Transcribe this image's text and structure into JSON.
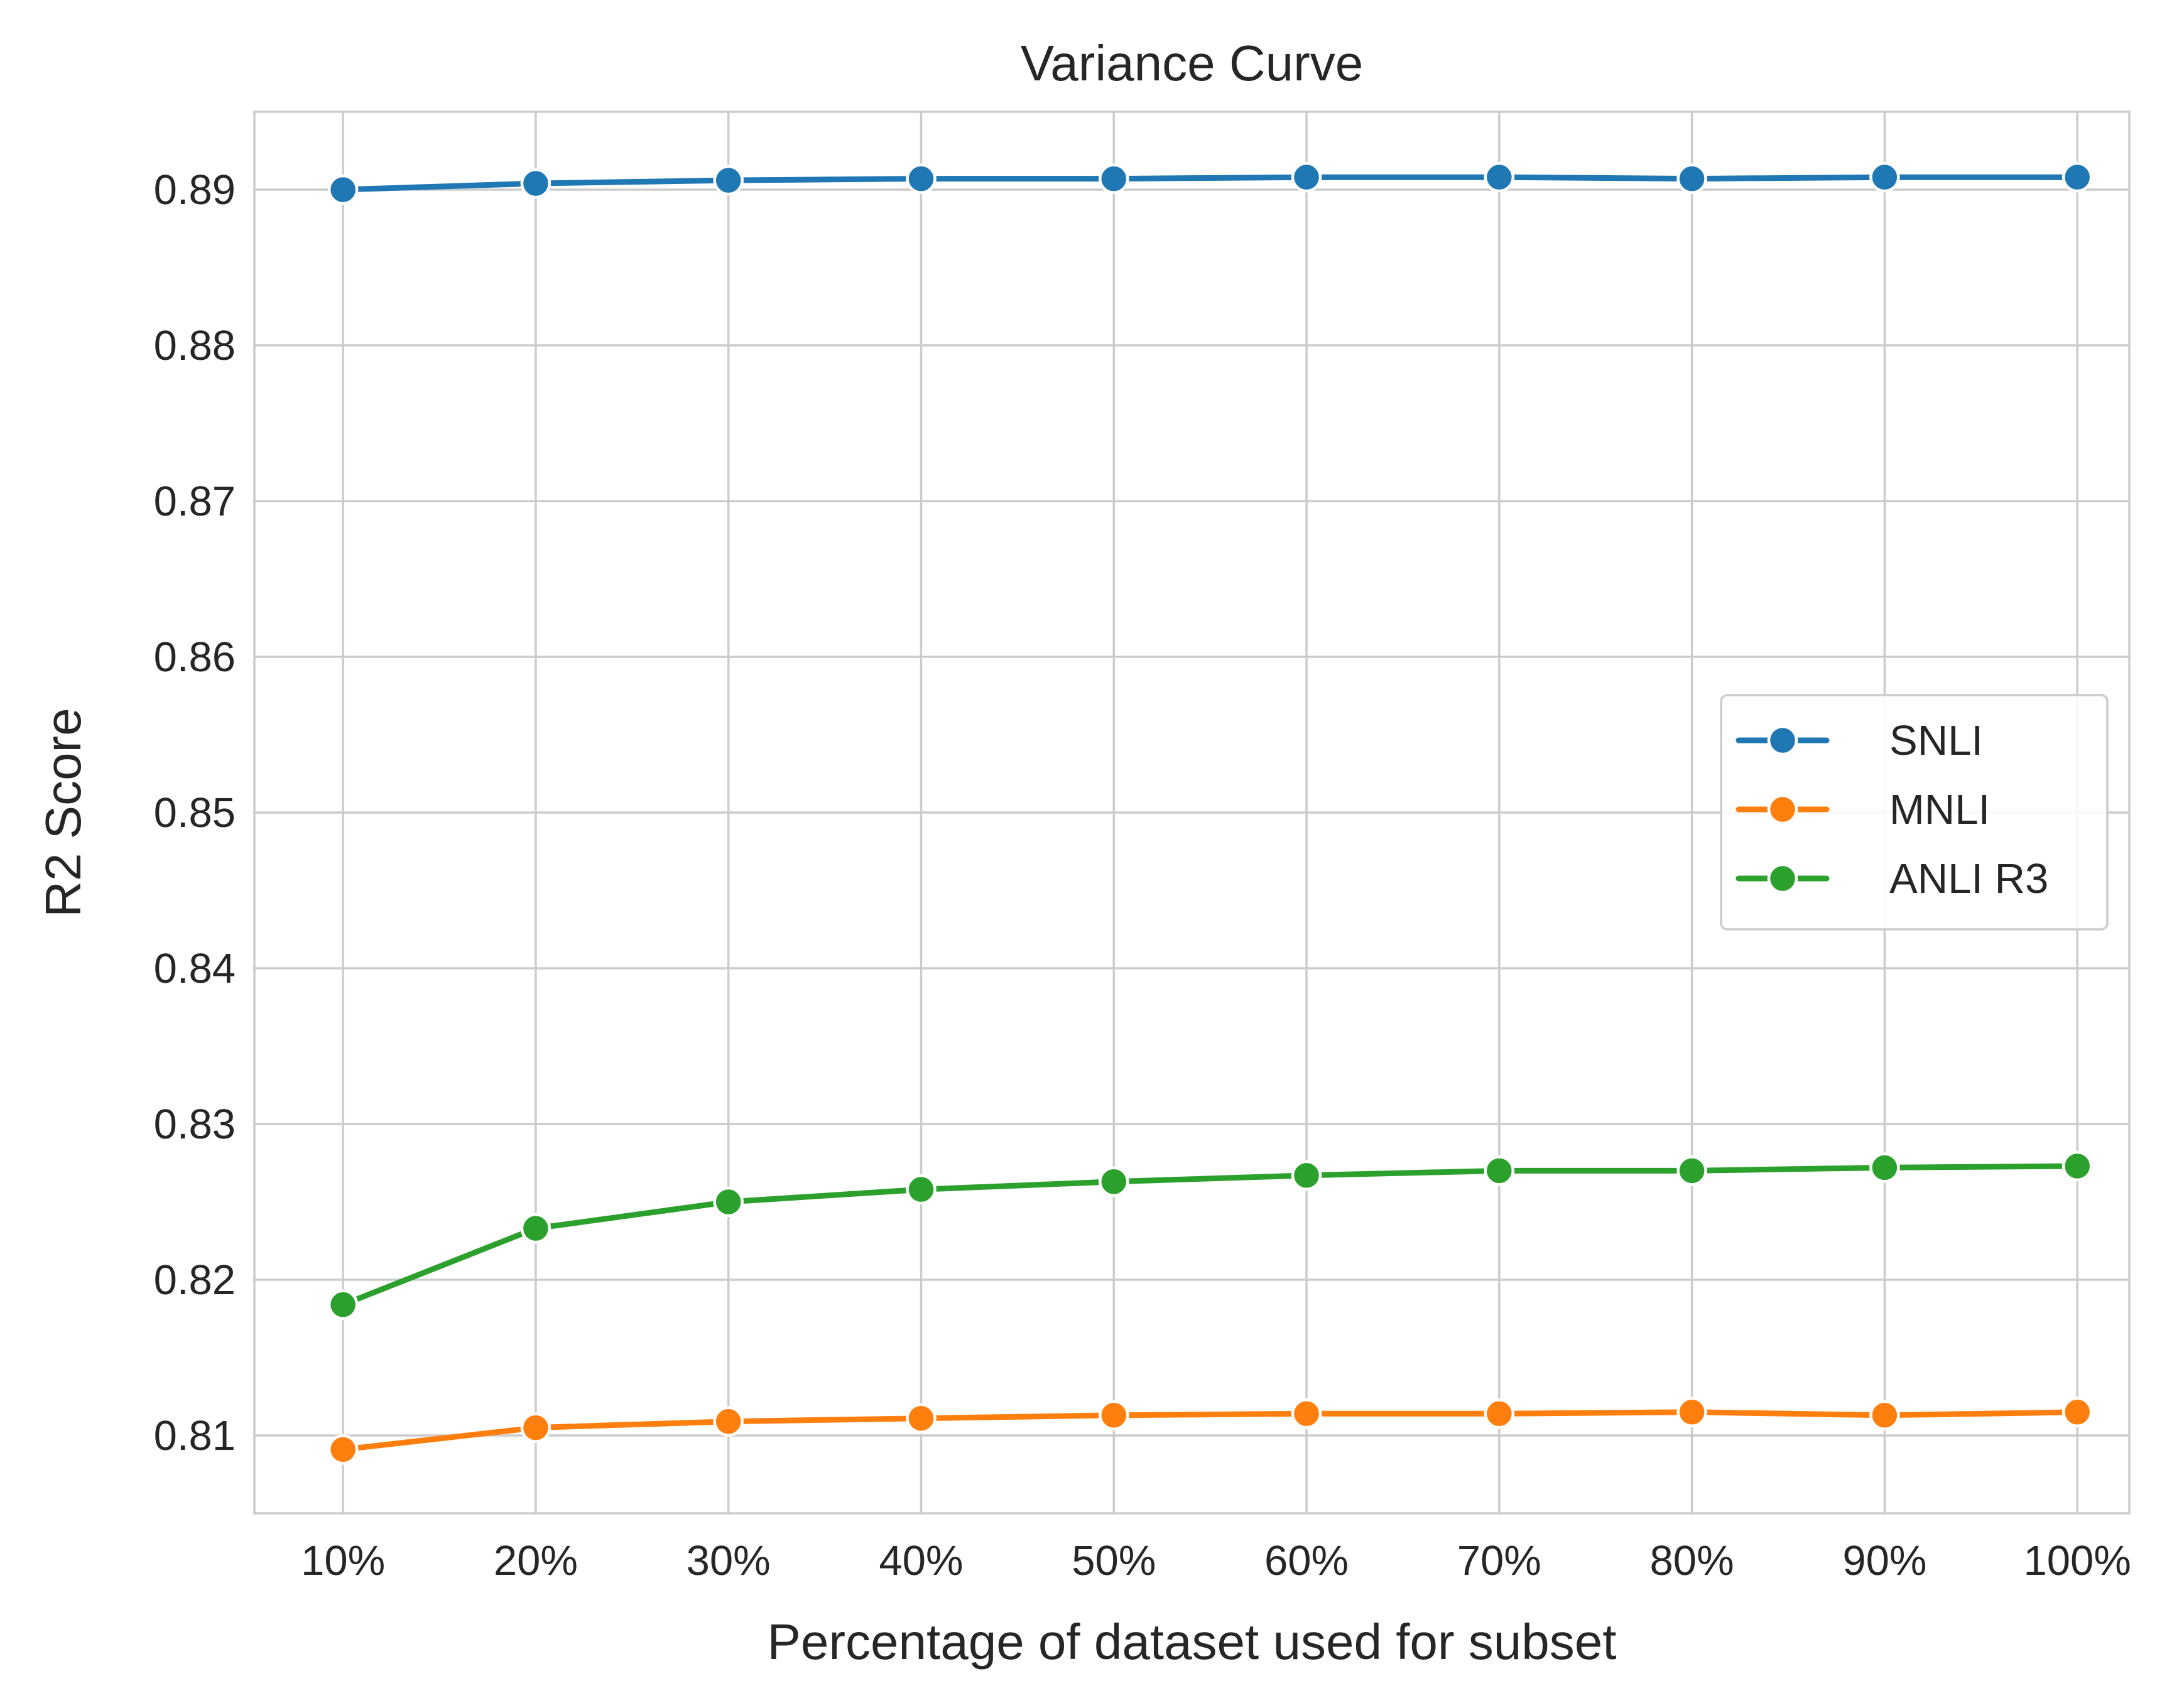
{
  "chart_data": {
    "type": "line",
    "title": "Variance Curve",
    "xlabel": "Percentage of dataset used for subset",
    "ylabel": "R2 Score",
    "categories": [
      "10%",
      "20%",
      "30%",
      "40%",
      "50%",
      "60%",
      "70%",
      "80%",
      "90%",
      "100%"
    ],
    "x": [
      10,
      20,
      30,
      40,
      50,
      60,
      70,
      80,
      90,
      100
    ],
    "xlim": [
      5.4,
      102.7
    ],
    "ylim": [
      0.805,
      0.895
    ],
    "yticks": [
      0.81,
      0.82,
      0.83,
      0.84,
      0.85,
      0.86,
      0.87,
      0.88,
      0.89
    ],
    "ytick_labels": [
      "0.81",
      "0.82",
      "0.83",
      "0.84",
      "0.85",
      "0.86",
      "0.87",
      "0.88",
      "0.89"
    ],
    "grid": true,
    "legend_position": "center-right",
    "series": [
      {
        "name": "SNLI",
        "color": "#1f77b4",
        "marker": "circle",
        "values": [
          0.89,
          0.8904,
          0.8906,
          0.8907,
          0.8907,
          0.8908,
          0.8908,
          0.8907,
          0.8908,
          0.8908
        ]
      },
      {
        "name": "MNLI",
        "color": "#ff7f0e",
        "marker": "circle",
        "values": [
          0.8091,
          0.8105,
          0.8109,
          0.8111,
          0.8113,
          0.8114,
          0.8114,
          0.8115,
          0.8113,
          0.8115
        ]
      },
      {
        "name": "ANLI R3",
        "color": "#2ca02c",
        "marker": "circle",
        "values": [
          0.8184,
          0.8233,
          0.825,
          0.8258,
          0.8263,
          0.8267,
          0.827,
          0.827,
          0.8272,
          0.8273
        ]
      }
    ]
  }
}
